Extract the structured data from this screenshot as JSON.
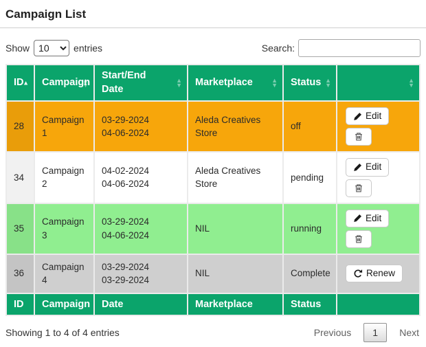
{
  "page": {
    "title": "Campaign List"
  },
  "controls": {
    "show_label": "Show",
    "page_length": "10",
    "entries_label": "entries",
    "search_label": "Search:",
    "search_value": ""
  },
  "table": {
    "columns": [
      "ID",
      "Campaign",
      "Start/End Date",
      "Marketplace",
      "Status",
      ""
    ],
    "footer_columns": [
      "ID",
      "Campaign",
      "Date",
      "Marketplace",
      "Status",
      ""
    ],
    "sort": {
      "column": "ID",
      "column_index": 0,
      "direction": "asc"
    },
    "action_labels": {
      "edit": "Edit",
      "renew": "Renew"
    },
    "icons": {
      "sort_asc": "▲",
      "sort_desc": "▼",
      "edit": "pencil-icon",
      "delete": "trash-icon",
      "renew": "refresh-icon"
    },
    "rows": [
      {
        "id": "28",
        "campaign": "Campaign 1",
        "start_date": "03-29-2024",
        "end_date": "04-06-2024",
        "marketplace": "Aleda Creatives Store",
        "status": "off",
        "color": "#f7a60b",
        "actions": [
          "edit",
          "delete"
        ]
      },
      {
        "id": "34",
        "campaign": "Campaign 2",
        "start_date": "04-02-2024",
        "end_date": "04-06-2024",
        "marketplace": "Aleda Creatives Store",
        "status": "pending",
        "color": "#ffffff",
        "actions": [
          "edit",
          "delete"
        ]
      },
      {
        "id": "35",
        "campaign": "Campaign 3",
        "start_date": "03-29-2024",
        "end_date": "04-06-2024",
        "marketplace": "NIL",
        "status": "running",
        "color": "#90ee90",
        "actions": [
          "edit",
          "delete"
        ]
      },
      {
        "id": "36",
        "campaign": "Campaign 4",
        "start_date": "03-29-2024",
        "end_date": "03-29-2024",
        "marketplace": "NIL",
        "status": "Complete",
        "color": "#cfcfcf",
        "actions": [
          "renew"
        ]
      }
    ]
  },
  "summary": {
    "info": "Showing 1 to 4 of 4 entries"
  },
  "pagination": {
    "previous": "Previous",
    "current": "1",
    "next": "Next"
  },
  "colors": {
    "header_green": "#0ba46b",
    "row_off_orange": "#f7a60b",
    "row_pending_white": "#ffffff",
    "row_running_lightgreen": "#90ee90",
    "row_complete_gray": "#cfcfcf"
  }
}
